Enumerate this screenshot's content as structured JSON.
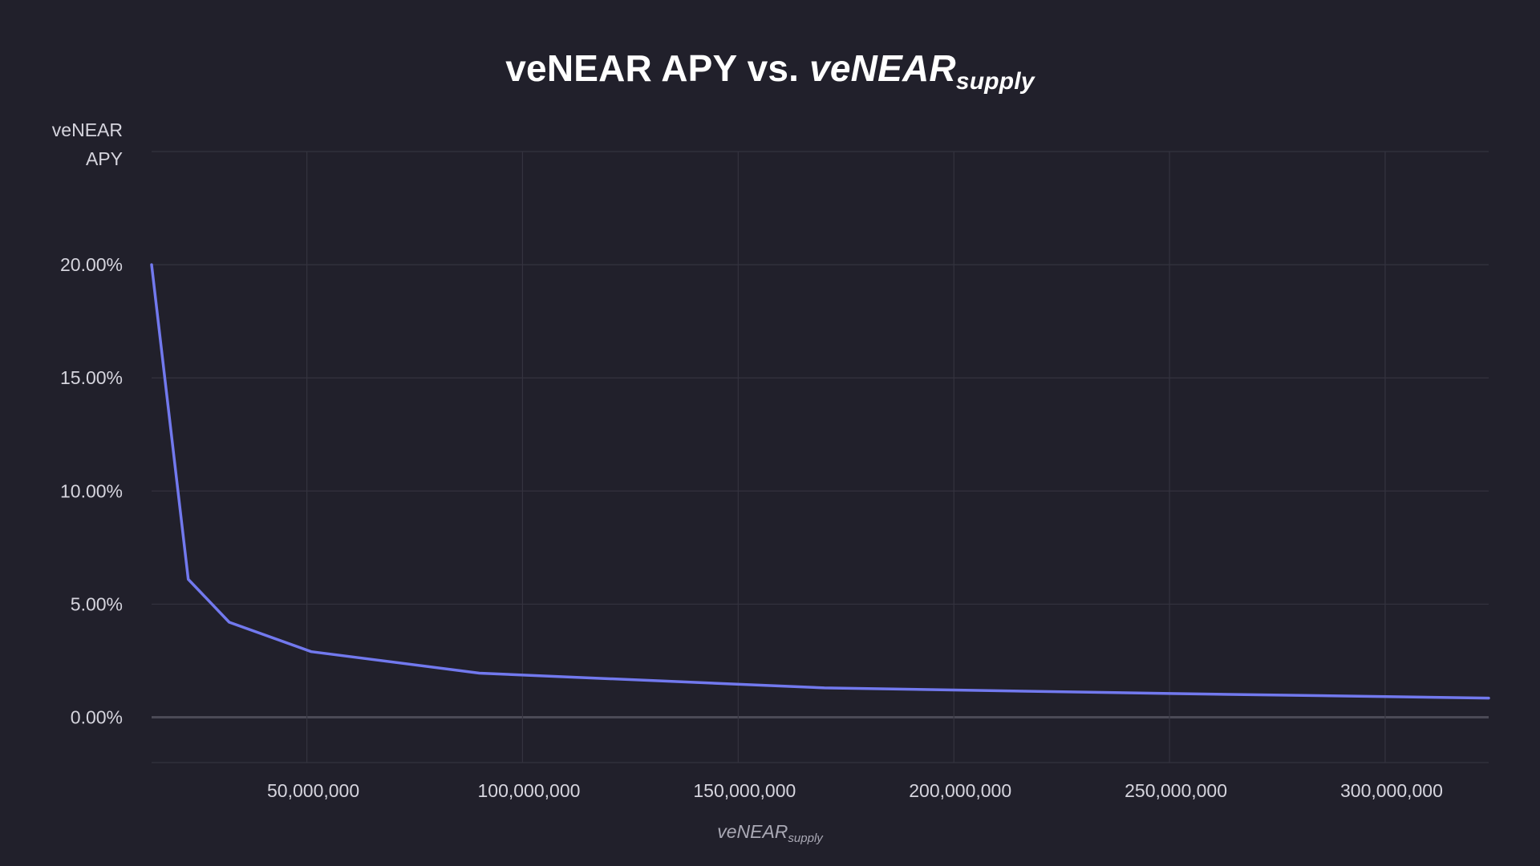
{
  "chart_data": {
    "type": "line",
    "title": {
      "main": "veNEAR APY vs. ",
      "italic": "veNEAR",
      "subscript": "supply"
    },
    "ylabel": [
      "veNEAR",
      "APY"
    ],
    "xlabel": {
      "main": "veNEAR",
      "subscript": "supply"
    },
    "xlim": [
      14000000,
      324000000
    ],
    "ylim": [
      -2.0,
      25.0
    ],
    "x_ticks": [
      50000000,
      100000000,
      150000000,
      200000000,
      250000000,
      300000000
    ],
    "x_tick_labels": [
      "50,000,000",
      "100,000,000",
      "150,000,000",
      "200,000,000",
      "250,000,000",
      "300,000,000"
    ],
    "y_ticks": [
      0,
      5,
      10,
      15,
      20
    ],
    "y_tick_labels": [
      "0.00%",
      "5.00%",
      "10.00%",
      "15.00%",
      "20.00%"
    ],
    "grid": true,
    "series": [
      {
        "color": "#7279ee",
        "x": [
          14000000,
          22500000,
          32000000,
          51000000,
          90000000,
          170000000,
          250000000,
          324000000
        ],
        "y": [
          20.0,
          6.1,
          4.2,
          2.9,
          1.95,
          1.3,
          1.05,
          0.85
        ]
      }
    ]
  },
  "colors": {
    "background": "#21202b",
    "grid": "#34333f",
    "zero_line": "#4b4a56",
    "line": "#7279ee",
    "text": "#d6d5de",
    "title": "#ffffff"
  }
}
